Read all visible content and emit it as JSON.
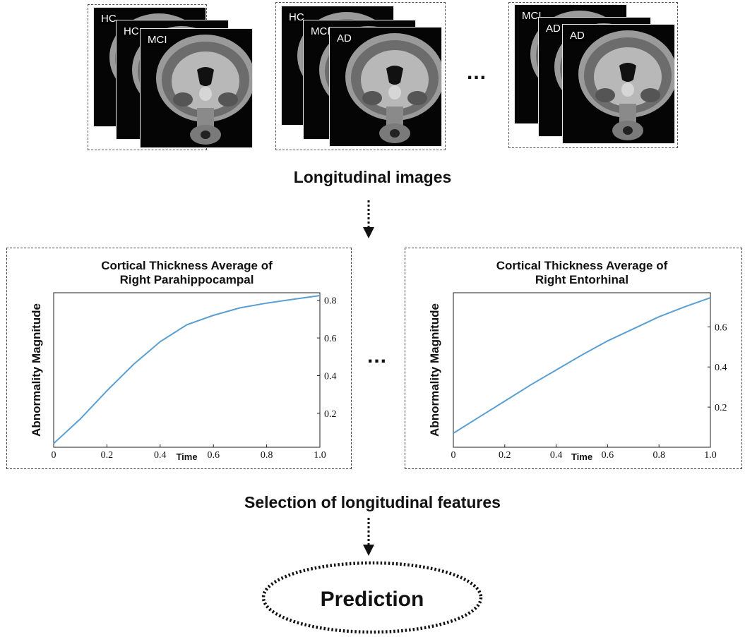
{
  "image_groups": [
    {
      "labels": [
        "HC",
        "HC",
        "MCI"
      ]
    },
    {
      "labels": [
        "HC",
        "MCI",
        "AD"
      ]
    },
    {
      "labels": [
        "MCI",
        "AD",
        "AD"
      ]
    }
  ],
  "top_ellipsis": "...",
  "longitudinal_images_label": "Longitudinal images",
  "middle_ellipsis": "...",
  "selection_label": "Selection of longitudinal features",
  "prediction_label": "Prediction",
  "colors": {
    "line": "#5a9fd1",
    "border": "#444444"
  },
  "chart_data": [
    {
      "type": "line",
      "title": "Cortical Thickness Average of Right Parahippocampal",
      "title_lines": [
        "Cortical Thickness Average of",
        "Right Parahippocampal"
      ],
      "xlabel": "Time",
      "ylabel": "Abnormality Magnitude",
      "xlim": [
        0,
        1.0
      ],
      "ylim": [
        0.02,
        0.84
      ],
      "xticks": [
        "0",
        "0.2",
        "0.4",
        "0.6",
        "0.8",
        "1.0"
      ],
      "xtick_values": [
        0,
        0.2,
        0.4,
        0.6,
        0.8,
        1.0
      ],
      "yticks": [
        "0.2",
        "0.4",
        "0.6",
        "0.8"
      ],
      "ytick_values": [
        0.2,
        0.4,
        0.6,
        0.8
      ],
      "yaxis_side": "right",
      "grid": false,
      "series": [
        {
          "x": [
            0,
            0.1,
            0.2,
            0.3,
            0.4,
            0.5,
            0.6,
            0.7,
            0.8,
            0.9,
            1.0
          ],
          "y": [
            0.04,
            0.17,
            0.32,
            0.46,
            0.58,
            0.67,
            0.72,
            0.76,
            0.785,
            0.805,
            0.825
          ]
        }
      ]
    },
    {
      "type": "line",
      "title": "Cortical Thickness Average of Right Entorhinal",
      "title_lines": [
        "Cortical Thickness Average of",
        "Right Entorhinal"
      ],
      "xlabel": "Time",
      "ylabel": "Abnormality Magnitude",
      "xlim": [
        0,
        1.0
      ],
      "ylim": [
        0.0,
        0.77
      ],
      "xticks": [
        "0",
        "0.2",
        "0.4",
        "0.6",
        "0.8",
        "1.0"
      ],
      "xtick_values": [
        0,
        0.2,
        0.4,
        0.6,
        0.8,
        1.0
      ],
      "yticks": [
        "0.2",
        "0.4",
        "0.6"
      ],
      "ytick_values": [
        0.2,
        0.4,
        0.6
      ],
      "yaxis_side": "right",
      "grid": false,
      "series": [
        {
          "x": [
            0,
            0.1,
            0.2,
            0.3,
            0.4,
            0.5,
            0.6,
            0.7,
            0.8,
            0.9,
            1.0
          ],
          "y": [
            0.07,
            0.15,
            0.23,
            0.31,
            0.385,
            0.46,
            0.53,
            0.59,
            0.65,
            0.7,
            0.745
          ]
        }
      ]
    }
  ]
}
